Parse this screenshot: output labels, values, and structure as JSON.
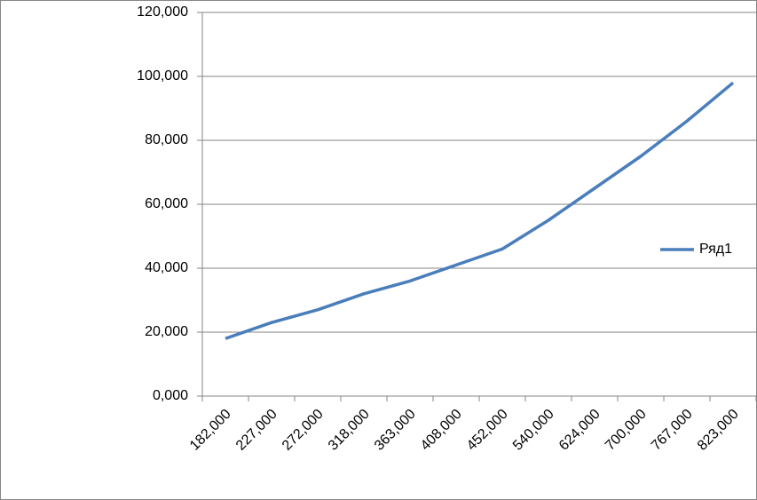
{
  "chart_data": {
    "type": "line",
    "categories": [
      "182,000",
      "227,000",
      "272,000",
      "318,000",
      "363,000",
      "408,000",
      "452,000",
      "540,000",
      "624,000",
      "700,000",
      "767,000",
      "823,000"
    ],
    "series": [
      {
        "name": "Ряд1",
        "color": "#4a7ebb",
        "values": [
          18000,
          23000,
          27000,
          32000,
          36000,
          41000,
          46000,
          55000,
          65000,
          75000,
          86000,
          98000
        ]
      }
    ],
    "ylim": [
      0,
      120000
    ],
    "yticks": [
      {
        "value": 0,
        "label": "0,000"
      },
      {
        "value": 20000,
        "label": "20,000"
      },
      {
        "value": 40000,
        "label": "40,000"
      },
      {
        "value": 60000,
        "label": "60,000"
      },
      {
        "value": 80000,
        "label": "80,000"
      },
      {
        "value": 100000,
        "label": "100,000"
      },
      {
        "value": 120000,
        "label": "120,000"
      }
    ],
    "grid": true,
    "legend": "right"
  }
}
